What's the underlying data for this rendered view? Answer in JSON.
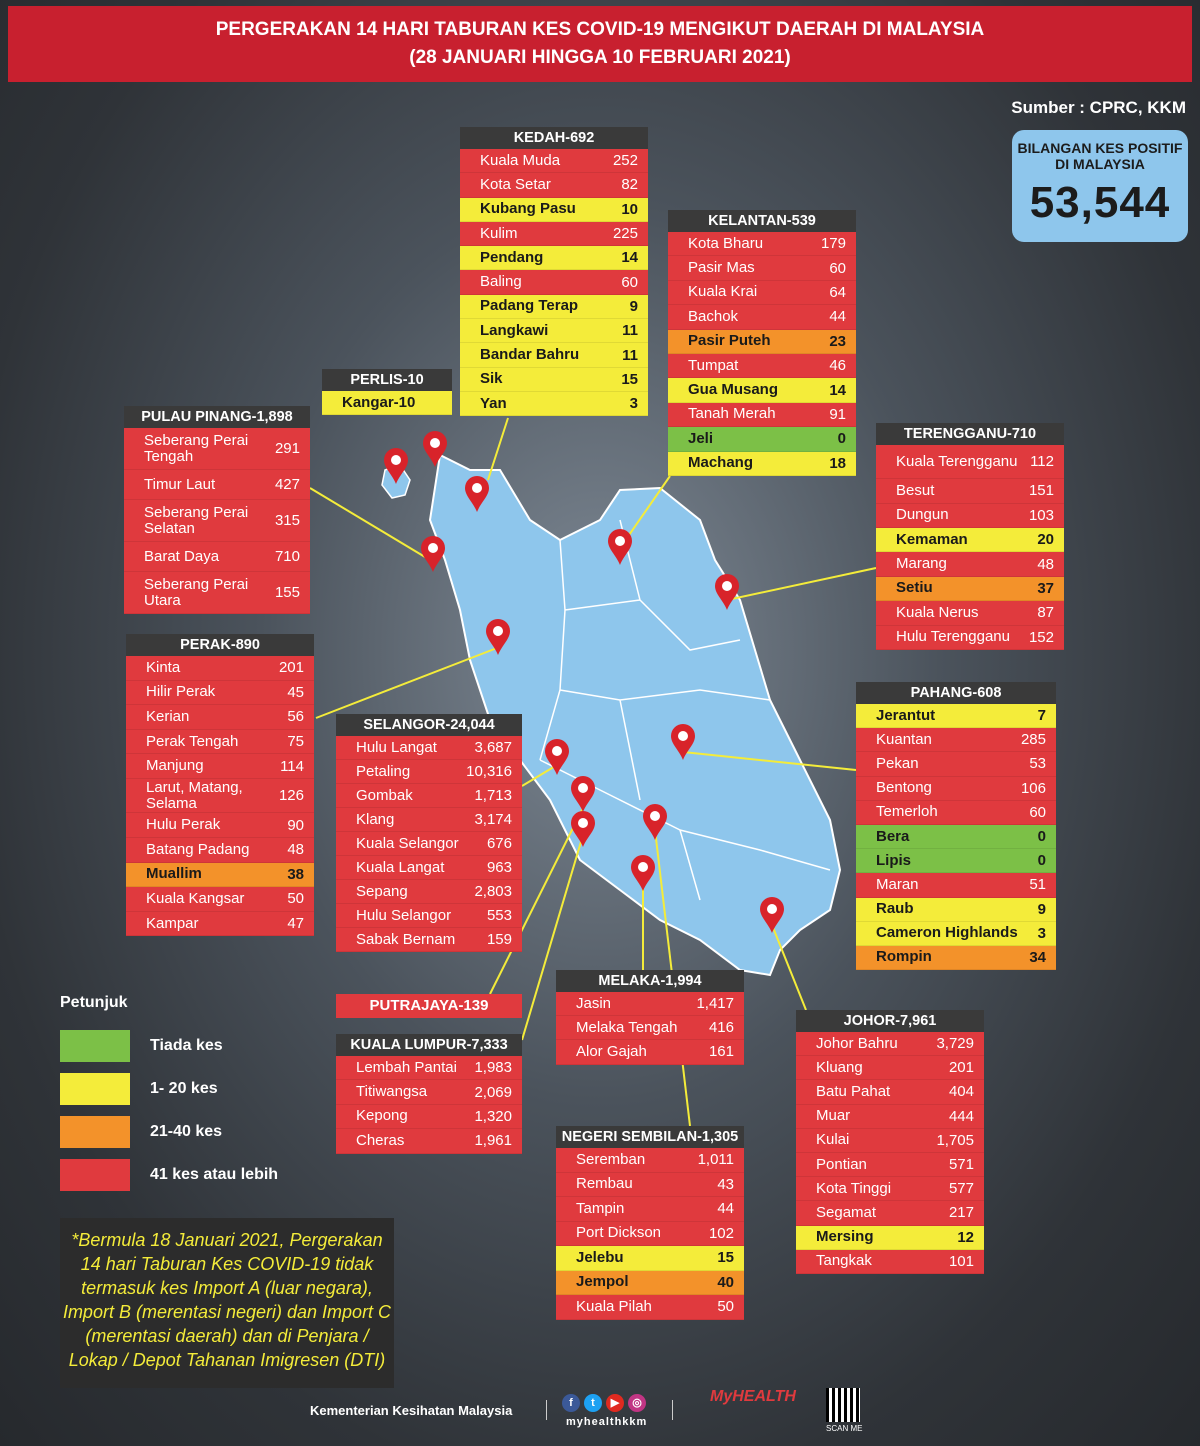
{
  "header": {
    "line1": "PERGERAKAN 14 HARI TABURAN KES COVID-19 MENGIKUT DAERAH DI MALAYSIA",
    "line2": "(28 JANUARI HINGGA 10 FEBRUARI 2021)"
  },
  "source": "Sumber : CPRC, KKM",
  "total": {
    "label": "BILANGAN KES POSITIF DI MALAYSIA",
    "value": "53,544"
  },
  "states": {
    "kedah": {
      "title": "KEDAH-692",
      "rows": [
        {
          "name": "Kuala Muda",
          "value": "252",
          "color": "red"
        },
        {
          "name": "Kota Setar",
          "value": "82",
          "color": "red"
        },
        {
          "name": "Kubang Pasu",
          "value": "10",
          "color": "yellow"
        },
        {
          "name": "Kulim",
          "value": "225",
          "color": "red"
        },
        {
          "name": "Pendang",
          "value": "14",
          "color": "yellow"
        },
        {
          "name": "Baling",
          "value": "60",
          "color": "red"
        },
        {
          "name": "Padang Terap",
          "value": "9",
          "color": "yellow"
        },
        {
          "name": "Langkawi",
          "value": "11",
          "color": "yellow"
        },
        {
          "name": "Bandar Bahru",
          "value": "11",
          "color": "yellow"
        },
        {
          "name": "Sik",
          "value": "15",
          "color": "yellow"
        },
        {
          "name": "Yan",
          "value": "3",
          "color": "yellow"
        }
      ]
    },
    "kelantan": {
      "title": "KELANTAN-539",
      "rows": [
        {
          "name": "Kota Bharu",
          "value": "179",
          "color": "red"
        },
        {
          "name": "Pasir Mas",
          "value": "60",
          "color": "red"
        },
        {
          "name": "Kuala Krai",
          "value": "64",
          "color": "red"
        },
        {
          "name": "Bachok",
          "value": "44",
          "color": "red"
        },
        {
          "name": "Pasir Puteh",
          "value": "23",
          "color": "orange"
        },
        {
          "name": "Tumpat",
          "value": "46",
          "color": "red"
        },
        {
          "name": "Gua Musang",
          "value": "14",
          "color": "yellow"
        },
        {
          "name": "Tanah Merah",
          "value": "91",
          "color": "red"
        },
        {
          "name": "Jeli",
          "value": "0",
          "color": "green"
        },
        {
          "name": "Machang",
          "value": "18",
          "color": "yellow"
        }
      ]
    },
    "perlis": {
      "title": "PERLIS-10",
      "rows": [
        {
          "name": "Kangar-10",
          "value": "",
          "color": "yellow"
        }
      ]
    },
    "pulau_pinang": {
      "title": "PULAU PINANG-1,898",
      "rows": [
        {
          "name": "Seberang Perai Tengah",
          "value": "291",
          "color": "red"
        },
        {
          "name": "Timur Laut",
          "value": "427",
          "color": "red"
        },
        {
          "name": "Seberang Perai Selatan",
          "value": "315",
          "color": "red"
        },
        {
          "name": "Barat Daya",
          "value": "710",
          "color": "red"
        },
        {
          "name": "Seberang Perai Utara",
          "value": "155",
          "color": "red"
        }
      ]
    },
    "terengganu": {
      "title": "TERENGGANU-710",
      "rows": [
        {
          "name": "Kuala Terengganu",
          "value": "112",
          "color": "red"
        },
        {
          "name": "Besut",
          "value": "151",
          "color": "red"
        },
        {
          "name": "Dungun",
          "value": "103",
          "color": "red"
        },
        {
          "name": "Kemaman",
          "value": "20",
          "color": "yellow"
        },
        {
          "name": "Marang",
          "value": "48",
          "color": "red"
        },
        {
          "name": "Setiu",
          "value": "37",
          "color": "orange"
        },
        {
          "name": "Kuala Nerus",
          "value": "87",
          "color": "red"
        },
        {
          "name": "Hulu Terengganu",
          "value": "152",
          "color": "red"
        }
      ]
    },
    "perak": {
      "title": "PERAK-890",
      "rows": [
        {
          "name": "Kinta",
          "value": "201",
          "color": "red"
        },
        {
          "name": "Hilir Perak",
          "value": "45",
          "color": "red"
        },
        {
          "name": "Kerian",
          "value": "56",
          "color": "red"
        },
        {
          "name": "Perak Tengah",
          "value": "75",
          "color": "red"
        },
        {
          "name": "Manjung",
          "value": "114",
          "color": "red"
        },
        {
          "name": "Larut, Matang, Selama",
          "value": "126",
          "color": "red"
        },
        {
          "name": "Hulu Perak",
          "value": "90",
          "color": "red"
        },
        {
          "name": "Batang Padang",
          "value": "48",
          "color": "red"
        },
        {
          "name": "Muallim",
          "value": "38",
          "color": "orange"
        },
        {
          "name": "Kuala Kangsar",
          "value": "50",
          "color": "red"
        },
        {
          "name": "Kampar",
          "value": "47",
          "color": "red"
        }
      ]
    },
    "selangor": {
      "title": "SELANGOR-24,044",
      "rows": [
        {
          "name": "Hulu Langat",
          "value": "3,687",
          "color": "red"
        },
        {
          "name": "Petaling",
          "value": "10,316",
          "color": "red"
        },
        {
          "name": "Gombak",
          "value": "1,713",
          "color": "red"
        },
        {
          "name": "Klang",
          "value": "3,174",
          "color": "red"
        },
        {
          "name": "Kuala Selangor",
          "value": "676",
          "color": "red"
        },
        {
          "name": "Kuala Langat",
          "value": "963",
          "color": "red"
        },
        {
          "name": "Sepang",
          "value": "2,803",
          "color": "red"
        },
        {
          "name": "Hulu Selangor",
          "value": "553",
          "color": "red"
        },
        {
          "name": "Sabak Bernam",
          "value": "159",
          "color": "red"
        }
      ]
    },
    "pahang": {
      "title": "PAHANG-608",
      "rows": [
        {
          "name": "Jerantut",
          "value": "7",
          "color": "yellow"
        },
        {
          "name": "Kuantan",
          "value": "285",
          "color": "red"
        },
        {
          "name": "Pekan",
          "value": "53",
          "color": "red"
        },
        {
          "name": "Bentong",
          "value": "106",
          "color": "red"
        },
        {
          "name": "Temerloh",
          "value": "60",
          "color": "red"
        },
        {
          "name": "Bera",
          "value": "0",
          "color": "green"
        },
        {
          "name": "Lipis",
          "value": "0",
          "color": "green"
        },
        {
          "name": "Maran",
          "value": "51",
          "color": "red"
        },
        {
          "name": "Raub",
          "value": "9",
          "color": "yellow"
        },
        {
          "name": "Cameron Highlands",
          "value": "3",
          "color": "yellow"
        },
        {
          "name": "Rompin",
          "value": "34",
          "color": "orange"
        }
      ]
    },
    "putrajaya": {
      "title": "PUTRAJAYA-139"
    },
    "kuala_lumpur": {
      "title": "KUALA LUMPUR-7,333",
      "rows": [
        {
          "name": "Lembah Pantai",
          "value": "1,983",
          "color": "red"
        },
        {
          "name": "Titiwangsa",
          "value": "2,069",
          "color": "red"
        },
        {
          "name": "Kepong",
          "value": "1,320",
          "color": "red"
        },
        {
          "name": "Cheras",
          "value": "1,961",
          "color": "red"
        }
      ]
    },
    "melaka": {
      "title": "MELAKA-1,994",
      "rows": [
        {
          "name": "Jasin",
          "value": "1,417",
          "color": "red"
        },
        {
          "name": "Melaka Tengah",
          "value": "416",
          "color": "red"
        },
        {
          "name": "Alor Gajah",
          "value": "161",
          "color": "red"
        }
      ]
    },
    "johor": {
      "title": "JOHOR-7,961",
      "rows": [
        {
          "name": "Johor Bahru",
          "value": "3,729",
          "color": "red"
        },
        {
          "name": "Kluang",
          "value": "201",
          "color": "red"
        },
        {
          "name": "Batu Pahat",
          "value": "404",
          "color": "red"
        },
        {
          "name": "Muar",
          "value": "444",
          "color": "red"
        },
        {
          "name": "Kulai",
          "value": "1,705",
          "color": "red"
        },
        {
          "name": "Pontian",
          "value": "571",
          "color": "red"
        },
        {
          "name": "Kota Tinggi",
          "value": "577",
          "color": "red"
        },
        {
          "name": "Segamat",
          "value": "217",
          "color": "red"
        },
        {
          "name": "Mersing",
          "value": "12",
          "color": "yellow"
        },
        {
          "name": "Tangkak",
          "value": "101",
          "color": "red"
        }
      ]
    },
    "negeri_sembilan": {
      "title": "NEGERI SEMBILAN-1,305",
      "rows": [
        {
          "name": "Seremban",
          "value": "1,011",
          "color": "red"
        },
        {
          "name": "Rembau",
          "value": "43",
          "color": "red"
        },
        {
          "name": "Tampin",
          "value": "44",
          "color": "red"
        },
        {
          "name": "Port Dickson",
          "value": "102",
          "color": "red"
        },
        {
          "name": "Jelebu",
          "value": "15",
          "color": "yellow"
        },
        {
          "name": "Jempol",
          "value": "40",
          "color": "orange"
        },
        {
          "name": "Kuala Pilah",
          "value": "50",
          "color": "red"
        }
      ]
    }
  },
  "legend": {
    "title": "Petunjuk",
    "items": [
      {
        "label": "Tiada kes",
        "color": "#7cc047"
      },
      {
        "label": "1- 20 kes",
        "color": "#f4ec3a"
      },
      {
        "label": "21-40 kes",
        "color": "#f3922a"
      },
      {
        "label": "41 kes atau lebih",
        "color": "#e03a3e"
      }
    ]
  },
  "note": "*Bermula 18 Januari 2021, Pergerakan 14 hari Taburan Kes COVID-19 tidak termasuk kes Import A (luar negara), Import B (merentasi negeri) dan Import C (merentasi daerah) dan di Penjara / Lokap / Depot Tahanan Imigresen (DTI)",
  "footer": {
    "org": "Kementerian Kesihatan Malaysia",
    "handle": "myhealthkkm",
    "brand": "MyHEALTH",
    "scan": "SCAN ME"
  },
  "colors": {
    "red": "#e03a3e",
    "yellow": "#f4ec3a",
    "orange": "#f3922a",
    "green": "#7cc047",
    "map": "#8ec6ec"
  }
}
